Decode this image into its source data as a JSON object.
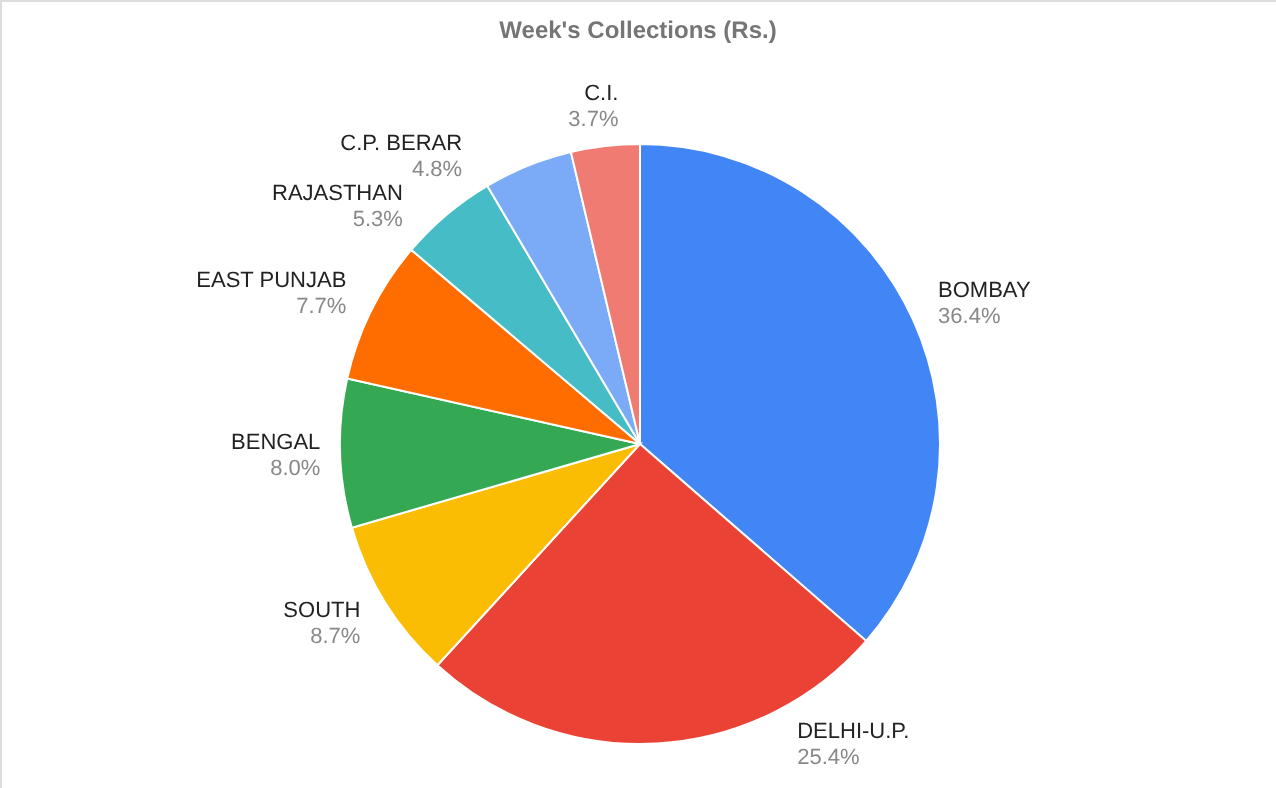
{
  "chart_data": {
    "type": "pie",
    "title": "Week's Collections (Rs.)",
    "categories": [
      "BOMBAY",
      "DELHI-U.P.",
      "SOUTH",
      "BENGAL",
      "EAST PUNJAB",
      "RAJASTHAN",
      "C.P. BERAR",
      "C.I."
    ],
    "values": [
      36.4,
      25.4,
      8.7,
      8.0,
      7.7,
      5.3,
      4.8,
      3.7
    ],
    "value_labels": [
      "36.4%",
      "25.4%",
      "8.7%",
      "8.0%",
      "7.7%",
      "5.3%",
      "4.8%",
      "3.7%"
    ],
    "colors": [
      "#4285f4",
      "#ea4335",
      "#fbbc04",
      "#34a853",
      "#ff6d01",
      "#46bdc6",
      "#7baaf7",
      "#f07b72"
    ],
    "legend": false
  }
}
